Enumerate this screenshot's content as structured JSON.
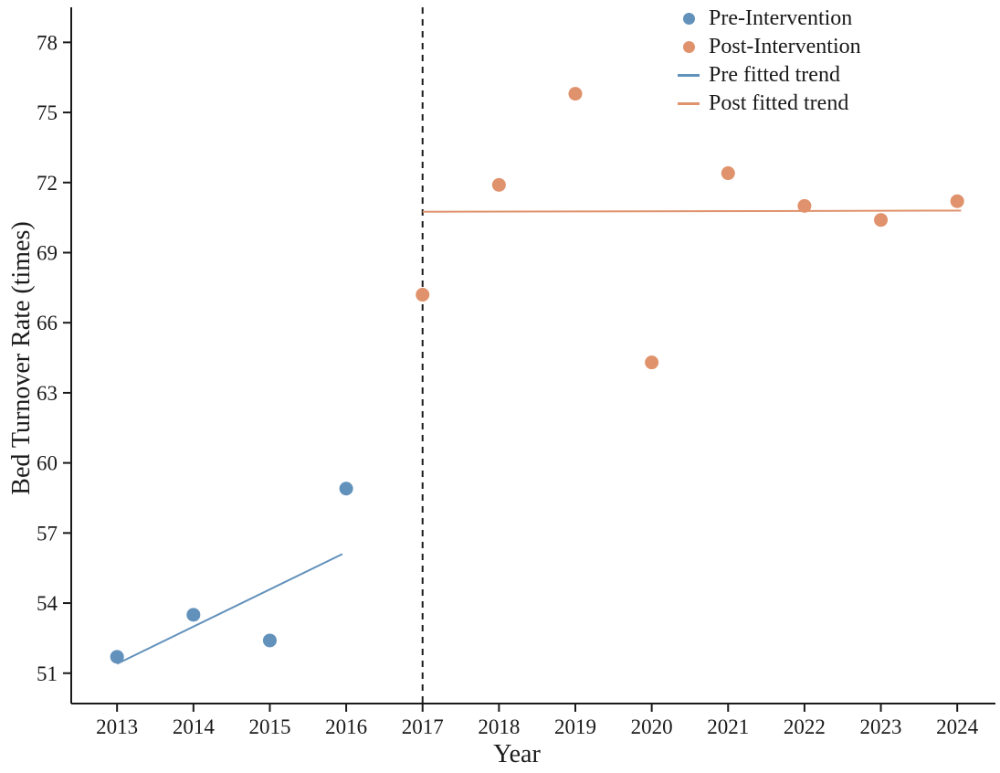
{
  "chart_data": {
    "type": "scatter",
    "title": "",
    "xlabel": "Year",
    "ylabel": "Bed Turnover Rate (times)",
    "x_ticks": [
      2013,
      2014,
      2015,
      2016,
      2017,
      2018,
      2019,
      2020,
      2021,
      2022,
      2023,
      2024
    ],
    "y_ticks": [
      51,
      54,
      57,
      60,
      63,
      66,
      69,
      72,
      75,
      78
    ],
    "xlim": [
      2012.4,
      2024.5
    ],
    "ylim": [
      49.7,
      79.5
    ],
    "grid": false,
    "legend_position": "top-right",
    "intervention_line": {
      "x": 2017,
      "style": "dashed",
      "color": "#1a1a1a"
    },
    "colors": {
      "pre": "#6291bb",
      "post": "#e0926c"
    },
    "series": [
      {
        "name": "Pre-Intervention",
        "kind": "scatter",
        "color": "#6291bb",
        "points": [
          [
            2013,
            51.7
          ],
          [
            2014,
            53.5
          ],
          [
            2015,
            52.4
          ],
          [
            2016,
            58.9
          ]
        ]
      },
      {
        "name": "Post-Intervention",
        "kind": "scatter",
        "color": "#e0926c",
        "points": [
          [
            2017,
            67.2
          ],
          [
            2018,
            71.9
          ],
          [
            2019,
            75.8
          ],
          [
            2020,
            64.3
          ],
          [
            2021,
            72.4
          ],
          [
            2022,
            71.0
          ],
          [
            2023,
            70.4
          ],
          [
            2024,
            71.2
          ]
        ]
      },
      {
        "name": "Pre fitted trend",
        "kind": "line",
        "color": "#6291bb",
        "points": [
          [
            2013,
            51.4
          ],
          [
            2015.95,
            56.1
          ]
        ]
      },
      {
        "name": "Post fitted trend",
        "kind": "line",
        "color": "#e0926c",
        "points": [
          [
            2017,
            70.75
          ],
          [
            2024.05,
            70.8
          ]
        ]
      }
    ],
    "legend": {
      "items": [
        {
          "label": "Pre-Intervention",
          "marker": "dot",
          "color": "#6291bb"
        },
        {
          "label": "Post-Intervention",
          "marker": "dot",
          "color": "#e0926c"
        },
        {
          "label": "Pre fitted trend",
          "marker": "line",
          "color": "#6291bb"
        },
        {
          "label": "Post fitted trend",
          "marker": "line",
          "color": "#e0926c"
        }
      ]
    }
  }
}
